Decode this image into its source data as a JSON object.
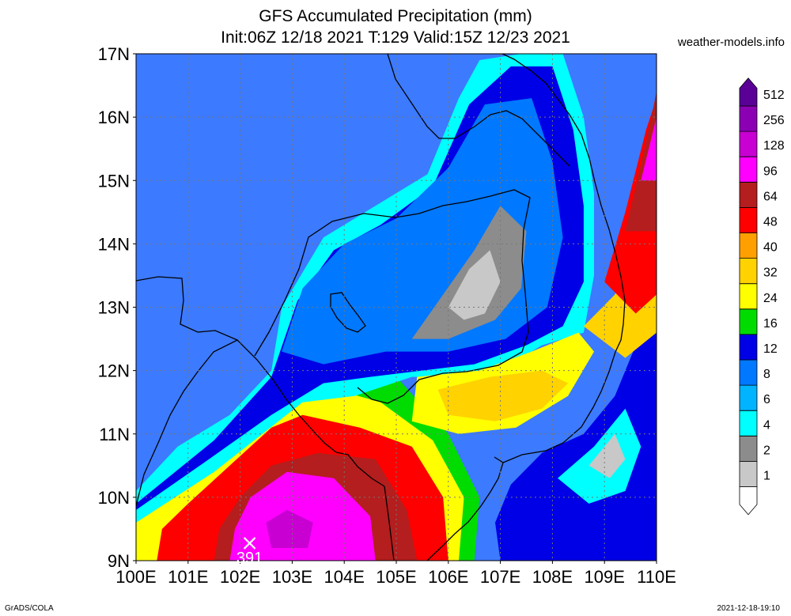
{
  "header": {
    "title": "GFS Accumulated Precipitation (mm)",
    "subtitle": "Init:06Z 12/18 2021 T:129 Valid:15Z 12/23 2021",
    "source": "weather-models.info"
  },
  "footer": {
    "left": "GrADS/COLA",
    "right": "2021-12-18-19:10"
  },
  "chart_data": {
    "type": "heatmap",
    "title": "GFS Accumulated Precipitation (mm)",
    "units": "mm",
    "x_ticks": [
      "100E",
      "101E",
      "102E",
      "103E",
      "104E",
      "105E",
      "106E",
      "107E",
      "108E",
      "109E",
      "110E"
    ],
    "y_ticks": [
      "9N",
      "10N",
      "11N",
      "12N",
      "13N",
      "14N",
      "15N",
      "16N",
      "17N"
    ],
    "xlim": [
      100,
      110
    ],
    "ylim": [
      9,
      17
    ],
    "grid": true,
    "legend": {
      "placement": "right",
      "levels": [
        "1",
        "2",
        "4",
        "6",
        "8",
        "12",
        "16",
        "24",
        "32",
        "40",
        "48",
        "64",
        "96",
        "128",
        "256",
        "512"
      ],
      "colors": [
        "#ffffff",
        "#c8c8c8",
        "#8c8c8c",
        "#00ffff",
        "#00b4ff",
        "#0078ff",
        "#0000e6",
        "#00dc00",
        "#ffff00",
        "#ffd200",
        "#ffa000",
        "#ff0000",
        "#b41e1e",
        "#ff00ff",
        "#c800d2",
        "#8c00b4",
        "#5a0096"
      ]
    },
    "max_marker": {
      "label": "391",
      "lon": 102.0,
      "lat": 9.5
    },
    "regions": [
      {
        "level": 7,
        "points": [
          [
            100,
            9
          ],
          [
            106.5,
            9
          ],
          [
            106.6,
            10
          ],
          [
            106,
            11
          ],
          [
            105,
            11.9
          ],
          [
            103.2,
            12.1
          ],
          [
            102.6,
            11.6
          ],
          [
            101.8,
            11.3
          ],
          [
            101.2,
            10.8
          ],
          [
            100.3,
            10.3
          ],
          [
            100,
            10.1
          ]
        ]
      },
      {
        "level": 8,
        "points": [
          [
            100,
            9
          ],
          [
            106.2,
            9
          ],
          [
            106.3,
            10
          ],
          [
            105.7,
            10.9
          ],
          [
            104.7,
            11.5
          ],
          [
            103.4,
            11.8
          ],
          [
            102.4,
            11.3
          ],
          [
            101.4,
            10.6
          ],
          [
            100.4,
            10.0
          ],
          [
            100,
            9.8
          ]
        ]
      },
      {
        "level": 11,
        "points": [
          [
            100.4,
            9
          ],
          [
            106,
            9
          ],
          [
            105.9,
            10
          ],
          [
            105.3,
            10.8
          ],
          [
            104.3,
            11.1
          ],
          [
            103.2,
            11.3
          ],
          [
            102.6,
            11.1
          ],
          [
            101.8,
            10.5
          ],
          [
            101.0,
            9.9
          ],
          [
            100.5,
            9.5
          ]
        ]
      },
      {
        "level": 12,
        "points": [
          [
            101.5,
            9
          ],
          [
            105.4,
            9
          ],
          [
            105.2,
            9.8
          ],
          [
            104.6,
            10.6
          ],
          [
            103.5,
            10.7
          ],
          [
            102.6,
            10.5
          ],
          [
            102.0,
            10.0
          ],
          [
            101.6,
            9.5
          ]
        ]
      },
      {
        "level": 13,
        "points": [
          [
            101.8,
            9
          ],
          [
            104.6,
            9
          ],
          [
            104.5,
            9.7
          ],
          [
            103.8,
            10.3
          ],
          [
            102.9,
            10.4
          ],
          [
            102.2,
            10.0
          ],
          [
            101.9,
            9.5
          ]
        ]
      },
      {
        "level": 14,
        "points": [
          [
            102.6,
            9.2
          ],
          [
            103.3,
            9.2
          ],
          [
            103.4,
            9.6
          ],
          [
            102.9,
            9.8
          ],
          [
            102.5,
            9.6
          ]
        ]
      },
      {
        "level": 3,
        "points": [
          [
            100,
            10.1
          ],
          [
            100.8,
            10.8
          ],
          [
            101.8,
            11.3
          ],
          [
            102.6,
            12.0
          ],
          [
            102.8,
            13.0
          ],
          [
            103.6,
            14.1
          ],
          [
            104.6,
            14.6
          ],
          [
            105.6,
            15.1
          ],
          [
            106.2,
            16.3
          ],
          [
            106.6,
            16.9
          ],
          [
            107.4,
            17
          ],
          [
            108.2,
            17
          ],
          [
            108.6,
            16.0
          ],
          [
            108.8,
            14.8
          ],
          [
            108.8,
            13.5
          ],
          [
            108.6,
            12.6
          ],
          [
            107.8,
            12.4
          ],
          [
            107,
            12.0
          ],
          [
            106.2,
            11.9
          ],
          [
            105.3,
            11.9
          ],
          [
            104.2,
            11.6
          ],
          [
            103.2,
            11.5
          ],
          [
            101.5,
            10.4
          ],
          [
            100,
            9.6
          ]
        ]
      },
      {
        "level": 6,
        "points": [
          [
            100,
            9.9
          ],
          [
            101.5,
            10.9
          ],
          [
            102.6,
            11.9
          ],
          [
            103.1,
            13.1
          ],
          [
            103.8,
            13.9
          ],
          [
            104.7,
            14.3
          ],
          [
            105.7,
            14.9
          ],
          [
            106.4,
            16.2
          ],
          [
            107.2,
            16.8
          ],
          [
            108.0,
            16.8
          ],
          [
            108.4,
            15.8
          ],
          [
            108.6,
            14.6
          ],
          [
            108.6,
            13.4
          ],
          [
            108.2,
            12.7
          ],
          [
            107.5,
            12.4
          ],
          [
            106.5,
            12.1
          ],
          [
            105.5,
            12.0
          ],
          [
            104.5,
            11.9
          ],
          [
            103.6,
            11.8
          ],
          [
            102.6,
            11.3
          ],
          [
            101.4,
            10.6
          ],
          [
            100,
            9.8
          ]
        ]
      },
      {
        "level": 5,
        "points": [
          [
            102.8,
            12.3
          ],
          [
            103.2,
            13.3
          ],
          [
            104.0,
            14.0
          ],
          [
            105.0,
            14.4
          ],
          [
            106.0,
            15.2
          ],
          [
            106.7,
            16.2
          ],
          [
            107.6,
            16.3
          ],
          [
            108.0,
            15.3
          ],
          [
            108.2,
            14.1
          ],
          [
            107.9,
            13.0
          ],
          [
            107.1,
            12.5
          ],
          [
            106,
            12.3
          ],
          [
            104.8,
            12.3
          ],
          [
            103.6,
            12.1
          ]
        ]
      },
      {
        "level": 2,
        "points": [
          [
            105.3,
            12.5
          ],
          [
            105.9,
            13.2
          ],
          [
            106.5,
            13.9
          ],
          [
            107.0,
            14.6
          ],
          [
            107.5,
            14.2
          ],
          [
            107.4,
            13.3
          ],
          [
            106.9,
            12.8
          ],
          [
            106.0,
            12.5
          ]
        ]
      },
      {
        "level": 1,
        "points": [
          [
            106.0,
            13.0
          ],
          [
            106.4,
            13.6
          ],
          [
            106.8,
            13.9
          ],
          [
            107.0,
            13.4
          ],
          [
            106.7,
            12.9
          ],
          [
            106.3,
            12.8
          ]
        ]
      },
      {
        "level": 8,
        "points": [
          [
            105.4,
            11.9
          ],
          [
            106.6,
            12.0
          ],
          [
            107.6,
            12.3
          ],
          [
            108.5,
            12.6
          ],
          [
            108.8,
            12.3
          ],
          [
            108.3,
            11.6
          ],
          [
            107.3,
            11.1
          ],
          [
            106.2,
            11.0
          ],
          [
            105.3,
            11.2
          ]
        ]
      },
      {
        "level": 9,
        "points": [
          [
            105.8,
            11.7
          ],
          [
            106.8,
            11.9
          ],
          [
            107.8,
            12.0
          ],
          [
            108.3,
            11.8
          ],
          [
            107.8,
            11.4
          ],
          [
            106.9,
            11.2
          ],
          [
            106.0,
            11.3
          ]
        ]
      },
      {
        "level": 6,
        "points": [
          [
            107,
            9
          ],
          [
            110,
            9
          ],
          [
            110,
            12.6
          ],
          [
            109.6,
            12.4
          ],
          [
            109.2,
            11.6
          ],
          [
            108.6,
            11.0
          ],
          [
            107.8,
            10.7
          ],
          [
            107.2,
            10.2
          ],
          [
            106.9,
            9.6
          ]
        ]
      },
      {
        "level": 3,
        "points": [
          [
            108.1,
            10.3
          ],
          [
            108.8,
            10.8
          ],
          [
            109.4,
            11.4
          ],
          [
            109.7,
            10.8
          ],
          [
            109.4,
            10.1
          ],
          [
            108.7,
            9.9
          ]
        ]
      },
      {
        "level": 1,
        "points": [
          [
            108.7,
            10.5
          ],
          [
            109.2,
            11.0
          ],
          [
            109.4,
            10.6
          ],
          [
            109.1,
            10.3
          ]
        ]
      },
      {
        "level": 9,
        "points": [
          [
            108.6,
            12.7
          ],
          [
            109.2,
            13.2
          ],
          [
            109.6,
            14.2
          ],
          [
            109.8,
            15.4
          ],
          [
            110,
            15.8
          ],
          [
            110,
            12.6
          ],
          [
            109.4,
            12.2
          ]
        ]
      },
      {
        "level": 11,
        "points": [
          [
            109.0,
            13.4
          ],
          [
            109.4,
            14.5
          ],
          [
            109.8,
            15.8
          ],
          [
            110,
            16.3
          ],
          [
            110,
            13.2
          ],
          [
            109.6,
            12.9
          ]
        ]
      },
      {
        "level": 12,
        "points": [
          [
            109.4,
            14.2
          ],
          [
            109.8,
            15.6
          ],
          [
            110,
            16.4
          ],
          [
            110,
            14.2
          ]
        ]
      },
      {
        "level": 13,
        "points": [
          [
            109.7,
            15.0
          ],
          [
            110,
            16.0
          ],
          [
            110,
            15.0
          ]
        ]
      }
    ]
  }
}
